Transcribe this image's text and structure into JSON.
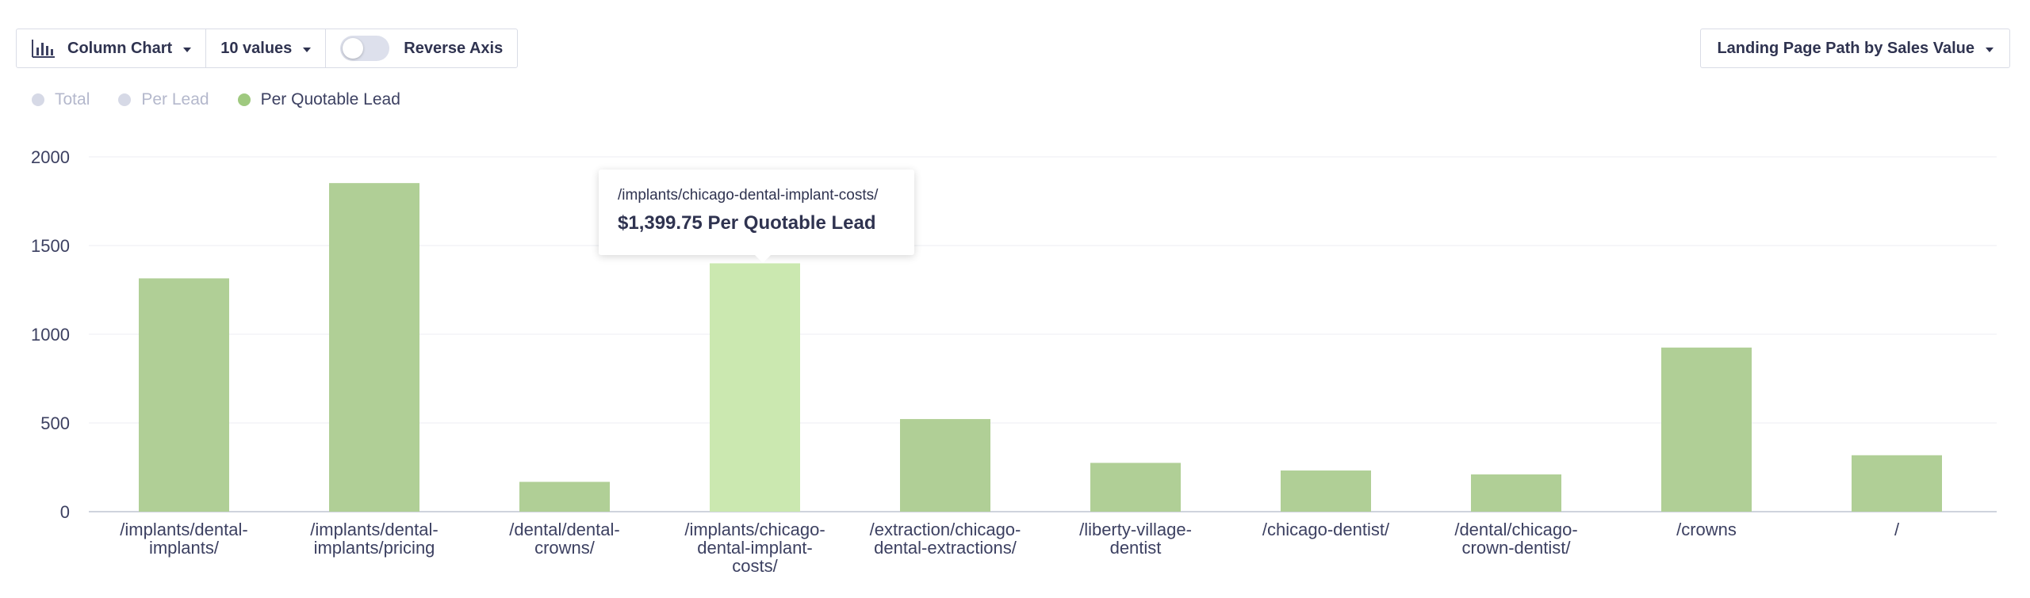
{
  "toolbar": {
    "chart_type_label": "Column Chart",
    "chart_type_icon": "column-chart-icon",
    "values_label": "10 values",
    "reverse_axis_label": "Reverse Axis",
    "reverse_axis_on": false
  },
  "group_select": {
    "label": "Landing Page Path by Sales Value"
  },
  "legend": [
    {
      "label": "Total",
      "active": false
    },
    {
      "label": "Per Lead",
      "active": false
    },
    {
      "label": "Per Quotable Lead",
      "active": true
    }
  ],
  "colors": {
    "bar": "#b0cf96",
    "bar_highlight": "#cbe8b0",
    "legend_active": "#9fc97f",
    "legend_inactive": "#d6d9e6",
    "grid": "#eceef3",
    "axis": "#cfd3dd",
    "tick_text": "#3c4061"
  },
  "chart_data": {
    "type": "bar",
    "categories": [
      "/implants/dental-implants/",
      "/implants/dental-implants/pricing",
      "/dental/dental-crowns/",
      "/implants/chicago-dental-implant-costs/",
      "/extraction/chicago-dental-extractions/",
      "/liberty-village-dentist",
      "/chicago-dentist/",
      "/dental/chicago-crown-dentist/",
      "/crowns",
      "/"
    ],
    "category_label_lines": [
      [
        "/implants/dental-",
        "implants/"
      ],
      [
        "/implants/dental-",
        "implants/pricing"
      ],
      [
        "/dental/dental-",
        "crowns/"
      ],
      [
        "/implants/chicago-",
        "dental-implant-",
        "costs/"
      ],
      [
        "/extraction/chicago-",
        "dental-extractions/"
      ],
      [
        "/liberty-village-",
        "dentist"
      ],
      [
        "/chicago-dentist/"
      ],
      [
        "/dental/chicago-",
        "crown-dentist/"
      ],
      [
        "/crowns"
      ],
      [
        "/"
      ]
    ],
    "series": [
      {
        "name": "Per Quotable Lead",
        "values": [
          1315,
          1852,
          168,
          1399.75,
          522,
          275,
          232,
          210,
          925,
          318
        ]
      }
    ],
    "yticks": [
      0,
      500,
      1000,
      1500,
      2000
    ],
    "ylim": [
      0,
      2000
    ],
    "grid": true,
    "legend_position": "top-left",
    "highlight_index": 3
  },
  "tooltip": {
    "path": "/implants/chicago-dental-implant-costs/",
    "value_text": "$1,399.75 Per Quotable Lead"
  }
}
